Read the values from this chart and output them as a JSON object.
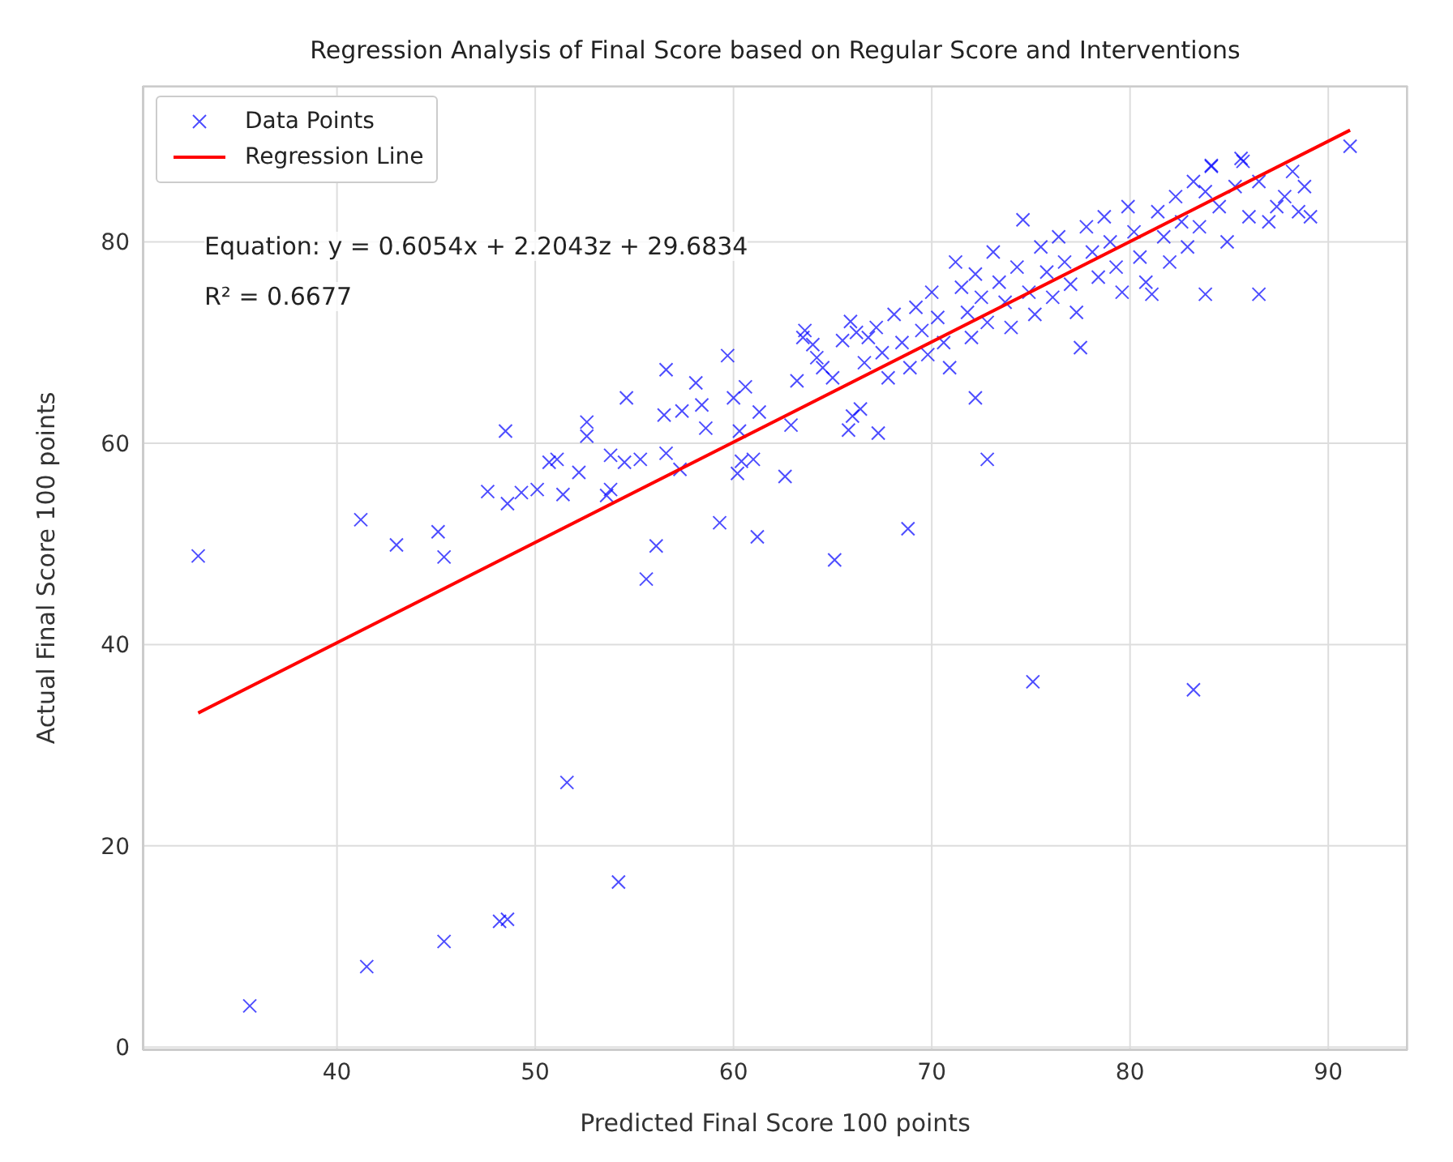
{
  "chart_data": {
    "type": "scatter",
    "title": "Regression Analysis of Final Score based on Regular Score and Interventions",
    "xlabel": "Predicted Final Score 100 points",
    "ylabel": "Actual Final Score 100 points",
    "annotations": [
      "Equation: y = 0.6054x + 2.2043z + 29.6834",
      "R² = 0.6677"
    ],
    "xlim": [
      30.2,
      94.0
    ],
    "ylim": [
      -0.3,
      95.5
    ],
    "xticks": [
      40,
      50,
      60,
      70,
      80,
      90
    ],
    "yticks": [
      0,
      20,
      40,
      60,
      80
    ],
    "grid": true,
    "legend": "top left",
    "series": [
      {
        "name": "Data Points",
        "marker": "cross",
        "color": "#0000ff",
        "x": [
          33.0,
          41.2,
          43.0,
          45.1,
          45.4,
          47.6,
          48.5,
          48.6,
          49.3,
          50.1,
          50.7,
          51.1,
          51.4,
          52.2,
          52.6,
          52.6,
          53.6,
          53.8,
          53.8,
          54.6,
          54.5,
          55.3,
          55.6,
          56.1,
          56.5,
          56.6,
          56.6,
          57.3,
          57.4,
          58.1,
          58.4,
          58.6,
          59.3,
          59.7,
          60.0,
          60.2,
          60.3,
          60.4,
          60.6,
          61.2,
          61.0,
          61.3,
          62.6,
          62.9,
          63.2,
          63.6,
          64.2,
          65.1,
          65.8,
          66.4,
          67.3,
          68.8,
          72.2,
          72.8,
          75.1,
          83.2,
          83.8,
          86.5,
          91.1,
          35.6,
          41.5,
          45.4,
          48.2,
          48.6,
          51.6,
          54.2,
          63.5,
          64.0,
          64.5,
          65.0,
          65.5,
          65.9,
          66.2,
          66.6,
          66.0,
          66.8,
          67.2,
          67.5,
          67.8,
          68.1,
          68.5,
          68.9,
          69.2,
          69.5,
          69.8,
          70.0,
          70.3,
          70.6,
          70.9,
          71.2,
          71.5,
          71.8,
          72.0,
          72.2,
          72.5,
          72.8,
          73.1,
          73.4,
          73.7,
          74.0,
          74.3,
          74.6,
          74.9,
          75.2,
          75.5,
          75.8,
          76.1,
          76.4,
          76.7,
          77.0,
          77.3,
          77.5,
          77.8,
          78.1,
          78.4,
          78.7,
          79.0,
          79.3,
          79.6,
          79.9,
          80.2,
          80.5,
          80.8,
          81.1,
          81.4,
          81.7,
          82.0,
          82.3,
          82.6,
          82.9,
          83.2,
          83.5,
          83.8,
          84.1,
          84.5,
          84.9,
          85.3,
          85.7,
          86.0,
          86.5,
          87.0,
          87.4,
          87.8,
          88.2,
          88.5,
          88.8,
          89.1,
          85.6,
          84.1
        ],
        "values": [
          48.8,
          52.4,
          49.9,
          51.2,
          48.7,
          55.2,
          61.2,
          54.0,
          55.1,
          55.4,
          58.1,
          58.4,
          54.9,
          57.1,
          62.1,
          60.7,
          54.8,
          55.4,
          58.8,
          64.5,
          58.1,
          58.4,
          46.5,
          49.8,
          62.8,
          67.3,
          59.0,
          57.4,
          63.2,
          66.0,
          63.8,
          61.5,
          52.1,
          68.7,
          64.5,
          57.0,
          61.2,
          58.2,
          65.6,
          50.7,
          58.4,
          63.1,
          56.7,
          61.8,
          66.2,
          71.2,
          68.5,
          48.4,
          61.3,
          63.4,
          61.0,
          51.5,
          64.5,
          58.4,
          36.3,
          35.5,
          74.8,
          74.8,
          89.5,
          4.1,
          8.0,
          10.5,
          12.5,
          12.7,
          26.3,
          16.4,
          70.5,
          69.8,
          67.5,
          66.5,
          70.2,
          72.1,
          71.0,
          68.0,
          62.7,
          70.5,
          71.5,
          69.0,
          66.5,
          72.8,
          70.0,
          67.5,
          73.5,
          71.2,
          68.8,
          75.0,
          72.5,
          70.0,
          67.5,
          78.0,
          75.5,
          73.0,
          70.5,
          76.8,
          74.5,
          72.0,
          79.0,
          76.0,
          74.0,
          71.5,
          77.5,
          82.2,
          75.0,
          72.8,
          79.5,
          77.0,
          74.5,
          80.5,
          78.0,
          75.8,
          73.0,
          69.5,
          81.5,
          79.0,
          76.5,
          82.5,
          80.0,
          77.5,
          75.0,
          83.5,
          81.0,
          78.5,
          76.0,
          74.8,
          83.0,
          80.5,
          78.0,
          84.5,
          82.0,
          79.5,
          86.0,
          81.5,
          85.0,
          87.5,
          83.5,
          80.0,
          85.5,
          88.0,
          82.5,
          86.0,
          82.0,
          83.5,
          84.5,
          87.0,
          83.0,
          85.5,
          82.5,
          88.3,
          87.6
        ]
      },
      {
        "name": "Regression Line",
        "type": "line",
        "marker": "none",
        "color": "#ff0000",
        "x": [
          33.0,
          91.1
        ],
        "values": [
          33.2,
          91.1
        ]
      }
    ]
  }
}
